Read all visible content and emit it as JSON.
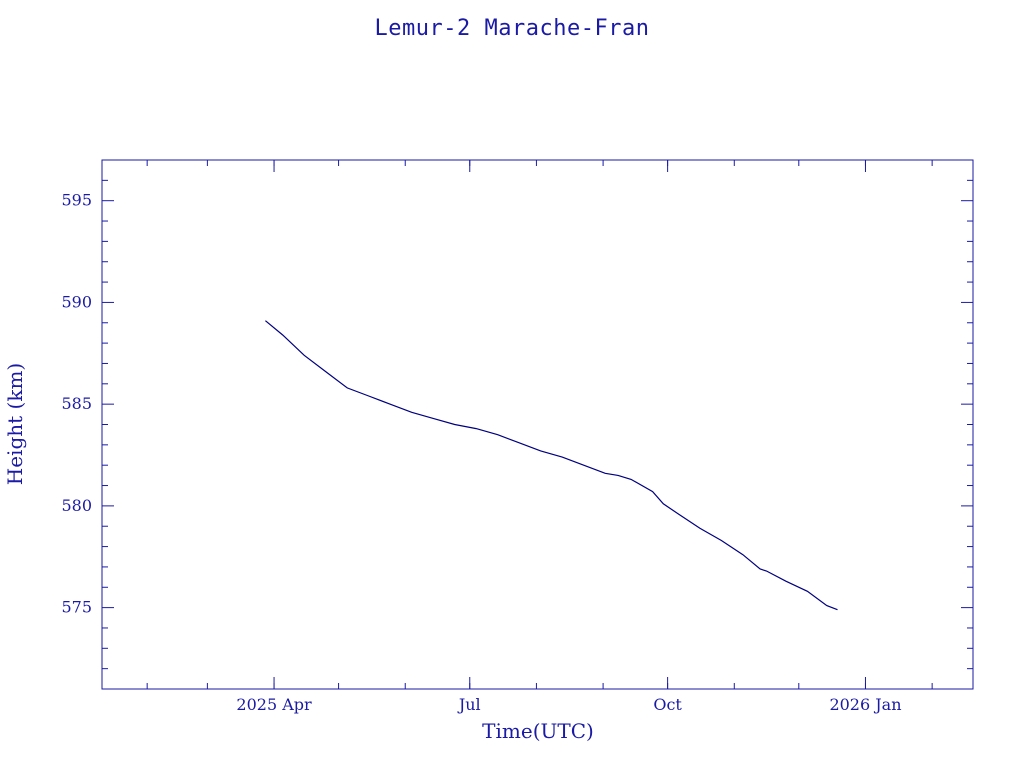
{
  "chart_data": {
    "type": "line",
    "title": "Lemur-2 Marache-Fran",
    "xlabel": "Time(UTC)",
    "ylabel": "Height (km)",
    "xlim": [
      "2025-01-11",
      "2026-02-20"
    ],
    "ylim": [
      571,
      597
    ],
    "x_ticks": [
      {
        "date": "2025-04-01",
        "label": "2025 Apr"
      },
      {
        "date": "2025-07-01",
        "label": "Jul"
      },
      {
        "date": "2025-10-01",
        "label": "Oct"
      },
      {
        "date": "2026-01-01",
        "label": "2026 Jan"
      }
    ],
    "y_ticks": [
      575,
      580,
      585,
      590,
      595
    ],
    "grid": false,
    "color": "#000080",
    "series": [
      {
        "x": [
          "2025-03-28",
          "2025-04-05",
          "2025-04-15",
          "2025-04-25",
          "2025-05-05",
          "2025-05-15",
          "2025-05-25",
          "2025-06-04",
          "2025-06-14",
          "2025-06-24",
          "2025-07-04",
          "2025-07-14",
          "2025-07-24",
          "2025-08-03",
          "2025-08-13",
          "2025-08-23",
          "2025-09-02",
          "2025-09-08",
          "2025-09-14",
          "2025-09-24",
          "2025-09-29",
          "2025-10-06",
          "2025-10-16",
          "2025-10-26",
          "2025-11-05",
          "2025-11-13",
          "2025-11-16",
          "2025-11-25",
          "2025-12-05",
          "2025-12-14",
          "2025-12-19"
        ],
        "y": [
          589.1,
          588.4,
          587.4,
          586.6,
          585.8,
          585.4,
          585.0,
          584.6,
          584.3,
          584.0,
          583.8,
          583.5,
          583.1,
          582.7,
          582.4,
          582.0,
          581.6,
          581.5,
          581.3,
          580.7,
          580.1,
          579.6,
          578.9,
          578.3,
          577.6,
          576.9,
          576.8,
          576.3,
          575.8,
          575.1,
          574.9
        ]
      }
    ]
  }
}
